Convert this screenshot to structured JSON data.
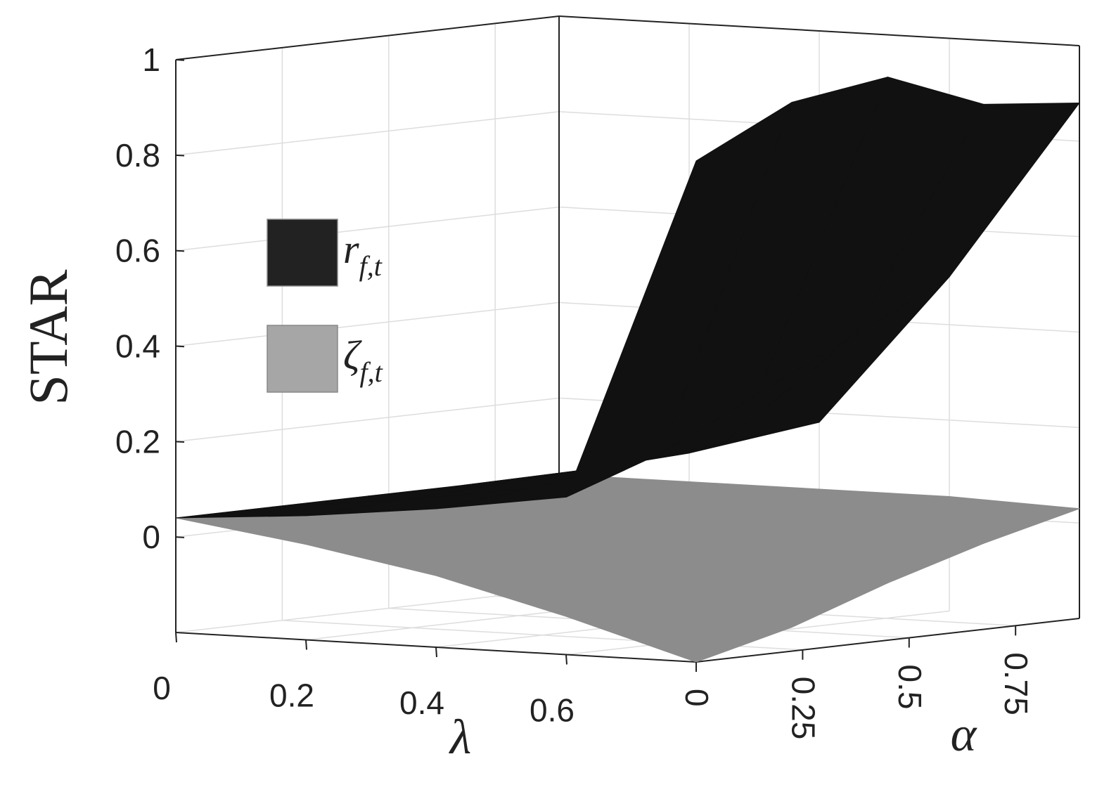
{
  "chart_data": {
    "type": "surface",
    "xlabel": "λ",
    "ylabel": "α",
    "zlabel": "STAR",
    "xlim": [
      0,
      0.8
    ],
    "ylim": [
      0,
      0.9
    ],
    "zlim": [
      -0.2,
      1
    ],
    "xticks": [
      0,
      0.2,
      0.4,
      0.6
    ],
    "yticks": [
      0,
      0.25,
      0.5,
      0.75
    ],
    "zticks": [
      0,
      0.2,
      0.4,
      0.6,
      0.8,
      1
    ],
    "grid": true,
    "x": [
      0,
      0.2,
      0.4,
      0.6,
      0.8
    ],
    "y": [
      0,
      0.225,
      0.45,
      0.675,
      0.9
    ],
    "series": [
      {
        "name": "ζ",
        "subscript": "f,t",
        "color": "#8c8c8c",
        "values": [
          [
            0.04,
            0.04,
            0.04,
            0.04,
            0.04
          ],
          [
            0.0,
            0.01,
            0.02,
            0.03,
            0.04
          ],
          [
            -0.05,
            -0.03,
            -0.01,
            0.02,
            0.04
          ],
          [
            -0.12,
            -0.08,
            -0.04,
            0.0,
            0.04
          ],
          [
            -0.2,
            -0.15,
            -0.08,
            -0.02,
            0.03
          ]
        ]
      },
      {
        "name": "r",
        "subscript": "f,t",
        "color": "#111111",
        "values": [
          [
            0.04,
            0.04,
            0.04,
            0.04,
            0.04
          ],
          [
            0.06,
            0.07,
            0.08,
            0.09,
            0.1
          ],
          [
            0.09,
            0.11,
            0.14,
            0.16,
            0.18
          ],
          [
            0.13,
            0.2,
            0.3,
            0.4,
            0.5
          ],
          [
            0.85,
            0.95,
            0.98,
            0.9,
            0.88
          ]
        ]
      }
    ]
  }
}
